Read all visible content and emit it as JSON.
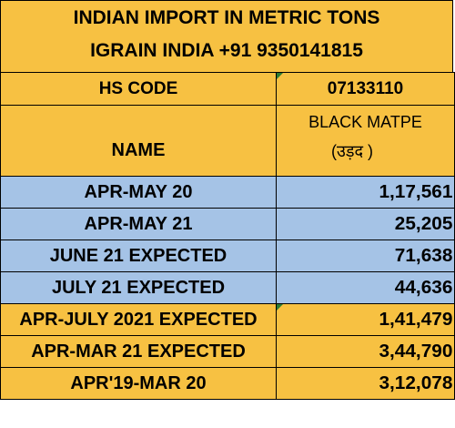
{
  "header": {
    "title": "INDIAN IMPORT IN METRIC TONS",
    "subtitle": "IGRAIN INDIA +91 9350141815"
  },
  "hs_row": {
    "label": "HS CODE",
    "code": "07133110"
  },
  "name_row": {
    "label": "NAME",
    "commodity_en": "BLACK MATPE",
    "commodity_hi": "(उड़द )"
  },
  "rows": [
    {
      "label": "APR-MAY 20",
      "value": "1,17,561",
      "color": "#a5c3e6"
    },
    {
      "label": "APR-MAY 21",
      "value": "25,205",
      "color": "#a5c3e6"
    },
    {
      "label": "JUNE 21 EXPECTED",
      "value": "71,638",
      "color": "#a5c3e6"
    },
    {
      "label": "JULY 21 EXPECTED",
      "value": "44,636",
      "color": "#a5c3e6"
    },
    {
      "label": "APR-JULY 2021 EXPECTED",
      "value": "1,41,479",
      "color": "#f7c142"
    },
    {
      "label": "APR-MAR 21 EXPECTED",
      "value": "3,44,790",
      "color": "#f7c142"
    },
    {
      "label": "APR'19-MAR 20",
      "value": "3,12,078",
      "color": "#f7c142"
    }
  ],
  "colors": {
    "yellow": "#f7c142",
    "blue": "#a5c3e6",
    "comment_marker": "#2e7d32"
  }
}
